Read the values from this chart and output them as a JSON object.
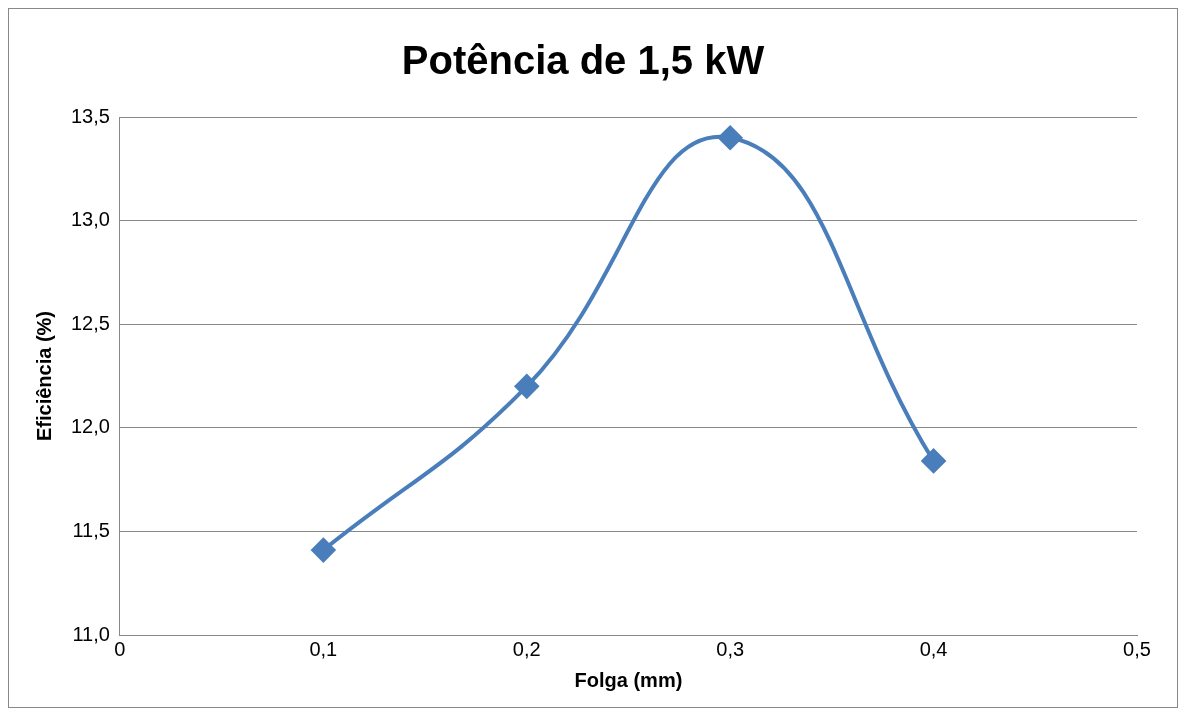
{
  "chart_data": {
    "type": "line",
    "title": "Potência de 1,5 kW",
    "xlabel": "Folga (mm)",
    "ylabel": "Eficiência (%)",
    "x": [
      0.1,
      0.2,
      0.3,
      0.4
    ],
    "series": [
      {
        "color": "#4a7ebb",
        "values": [
          11.41,
          12.2,
          13.4,
          11.84
        ]
      }
    ],
    "xlim": [
      0,
      0.5
    ],
    "xticks": [
      0,
      {
        "value": 0.1,
        "label": "0,1"
      },
      {
        "value": 0.2,
        "label": "0,2"
      },
      {
        "value": 0.3,
        "label": "0,3"
      },
      {
        "value": 0.4,
        "label": "0,4"
      },
      {
        "value": 0.5,
        "label": "0,5"
      }
    ],
    "ylim": [
      11,
      13.5
    ],
    "yticks": [
      {
        "value": 11,
        "label": "11,0"
      },
      {
        "value": 11.5,
        "label": "11,5"
      },
      {
        "value": 12,
        "label": "12,0"
      },
      {
        "value": 12.5,
        "label": "12,5"
      },
      {
        "value": 13,
        "label": "13,0"
      },
      {
        "value": 13.5,
        "label": "13,5"
      }
    ],
    "grid": "y",
    "legend": false,
    "marker": "diamond",
    "line_style": "solid"
  }
}
